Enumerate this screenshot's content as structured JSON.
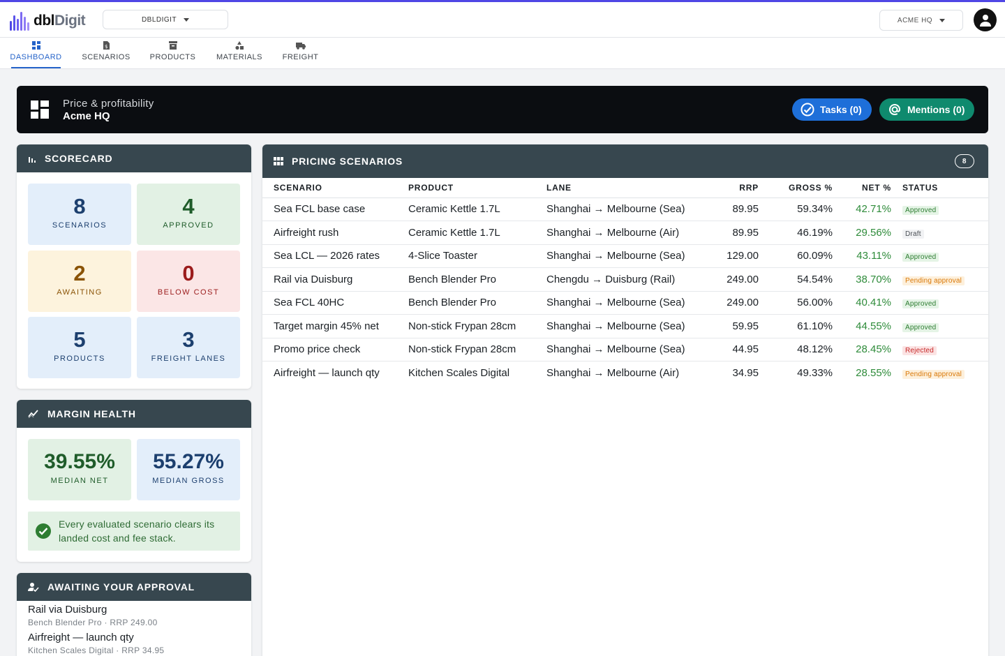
{
  "brand": {
    "logo_part1": "dbl",
    "logo_part2": "Digit",
    "accent": "#4f46e5"
  },
  "header": {
    "org_select": "DBLDIGIT",
    "company_select": "ACME HQ"
  },
  "nav": {
    "tabs": [
      {
        "label": "DASHBOARD",
        "active": true
      },
      {
        "label": "SCENARIOS"
      },
      {
        "label": "PRODUCTS"
      },
      {
        "label": "MATERIALS"
      },
      {
        "label": "FREIGHT"
      }
    ]
  },
  "banner": {
    "title": "Price & profitability",
    "subtitle": "Acme HQ",
    "tasks": "Tasks (0)",
    "mentions": "Mentions (0)"
  },
  "scorecard": {
    "title": "SCORECARD",
    "tiles": [
      {
        "value": "8",
        "label": "SCENARIOS"
      },
      {
        "value": "4",
        "label": "APPROVED"
      },
      {
        "value": "2",
        "label": "AWAITING"
      },
      {
        "value": "0",
        "label": "BELOW COST"
      },
      {
        "value": "5",
        "label": "PRODUCTS"
      },
      {
        "value": "3",
        "label": "FREIGHT LANES"
      }
    ]
  },
  "margin": {
    "title": "MARGIN HEALTH",
    "net_value": "39.55%",
    "net_label": "MEDIAN NET",
    "gross_value": "55.27%",
    "gross_label": "MEDIAN GROSS",
    "message": "Every evaluated scenario clears its landed cost and fee stack."
  },
  "approval": {
    "title": "AWAITING YOUR APPROVAL",
    "items": [
      {
        "name": "Rail via Duisburg",
        "detail": "Bench Blender Pro · RRP 249.00"
      },
      {
        "name": "Airfreight — launch qty",
        "detail": "Kitchen Scales Digital · RRP 34.95"
      }
    ]
  },
  "scenarios": {
    "title": "PRICING SCENARIOS",
    "count": "8",
    "columns": [
      "SCENARIO",
      "PRODUCT",
      "LANE",
      "RRP",
      "GROSS %",
      "NET %",
      "STATUS"
    ],
    "rows": [
      {
        "scenario": "Sea FCL base case",
        "product": "Ceramic Kettle 1.7L",
        "lane": "Shanghai → Melbourne (Sea)",
        "rrp": "89.95",
        "gross": "59.34%",
        "net": "42.71%",
        "status": "Approved",
        "kind": "approved"
      },
      {
        "scenario": "Airfreight rush",
        "product": "Ceramic Kettle 1.7L",
        "lane": "Shanghai → Melbourne (Air)",
        "rrp": "89.95",
        "gross": "46.19%",
        "net": "29.56%",
        "status": "Draft",
        "kind": "draft"
      },
      {
        "scenario": "Sea LCL — 2026 rates",
        "product": "4-Slice Toaster",
        "lane": "Shanghai → Melbourne (Sea)",
        "rrp": "129.00",
        "gross": "60.09%",
        "net": "43.11%",
        "status": "Approved",
        "kind": "approved"
      },
      {
        "scenario": "Rail via Duisburg",
        "product": "Bench Blender Pro",
        "lane": "Chengdu → Duisburg (Rail)",
        "rrp": "249.00",
        "gross": "54.54%",
        "net": "38.70%",
        "status": "Pending approval",
        "kind": "pending"
      },
      {
        "scenario": "Sea FCL 40HC",
        "product": "Bench Blender Pro",
        "lane": "Shanghai → Melbourne (Sea)",
        "rrp": "249.00",
        "gross": "56.00%",
        "net": "40.41%",
        "status": "Approved",
        "kind": "approved"
      },
      {
        "scenario": "Target margin 45% net",
        "product": "Non-stick Frypan 28cm",
        "lane": "Shanghai → Melbourne (Sea)",
        "rrp": "59.95",
        "gross": "61.10%",
        "net": "44.55%",
        "status": "Approved",
        "kind": "approved"
      },
      {
        "scenario": "Promo price check",
        "product": "Non-stick Frypan 28cm",
        "lane": "Shanghai → Melbourne (Sea)",
        "rrp": "44.95",
        "gross": "48.12%",
        "net": "28.45%",
        "status": "Rejected",
        "kind": "rejected"
      },
      {
        "scenario": "Airfreight — launch qty",
        "product": "Kitchen Scales Digital",
        "lane": "Shanghai → Melbourne (Air)",
        "rrp": "34.95",
        "gross": "49.33%",
        "net": "28.55%",
        "status": "Pending approval",
        "kind": "pending"
      }
    ]
  }
}
